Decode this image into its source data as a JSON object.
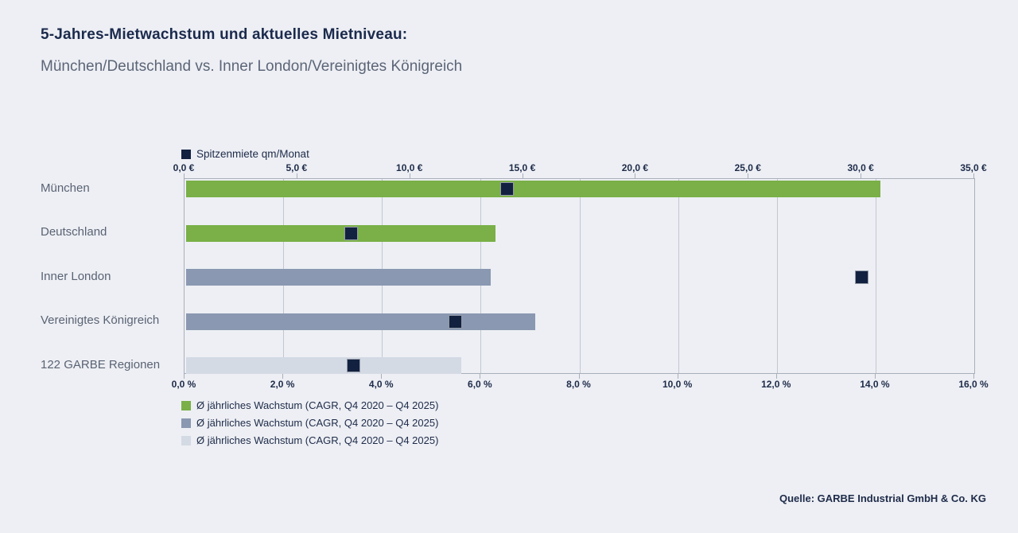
{
  "header": {
    "title": "5-Jahres-Mietwachstum und aktuelles Mietniveau:",
    "subtitle": "München/Deutschland vs. Inner London/Vereinigtes Königreich"
  },
  "top_legend": {
    "label": "Spitzenmiete qm/Monat",
    "marker_color": "#12213f"
  },
  "chart_data": {
    "type": "bar",
    "orientation": "horizontal",
    "categories": [
      "München",
      "Deutschland",
      "Inner London",
      "Vereinigtes Königreich",
      "122 GARBE Regionen"
    ],
    "series": [
      {
        "name": "Ø jährliches Wachstum (CAGR, Q4 2020 – Q4 2025)",
        "unit": "%",
        "axis": "bottom",
        "type": "bar",
        "values": [
          14.1,
          6.3,
          6.2,
          7.1,
          5.6
        ]
      },
      {
        "name": "Spitzenmiete qm/Monat",
        "unit": "€",
        "axis": "top",
        "type": "square-marker",
        "values": [
          14.3,
          7.4,
          30.0,
          12.0,
          7.5
        ]
      }
    ],
    "bar_colors": [
      "#7ab047",
      "#7ab047",
      "#8a98b1",
      "#8a98b1",
      "#d4dae4"
    ],
    "marker_color": "#12213f",
    "axis_top": {
      "min": 0,
      "max": 35,
      "step": 5,
      "ticks": [
        "0,0 €",
        "5,0 €",
        "10,0 €",
        "15,0 €",
        "20,0 €",
        "25,0 €",
        "30,0 €",
        "35,0 €"
      ]
    },
    "axis_bottom": {
      "min": 0,
      "max": 16,
      "step": 2,
      "ticks": [
        "0,0 %",
        "2,0 %",
        "4,0 %",
        "6,0 %",
        "8,0 %",
        "10,0 %",
        "12,0 %",
        "14,0 %",
        "16,0 %"
      ]
    },
    "grid": true,
    "legend_position": "bottom",
    "title": "5-Jahres-Mietwachstum und aktuelles Mietniveau: München/Deutschland vs. Inner London/Vereinigtes Königreich"
  },
  "bottom_legend": [
    {
      "label": "Ø jährliches Wachstum (CAGR, Q4 2020 – Q4 2025)",
      "color": "#7ab047"
    },
    {
      "label": "Ø jährliches Wachstum (CAGR, Q4 2020 – Q4 2025)",
      "color": "#8a98b1"
    },
    {
      "label": "Ø jährliches Wachstum (CAGR, Q4 2020 – Q4 2025)",
      "color": "#d4dae4"
    }
  ],
  "source": "Quelle: GARBE Industrial GmbH & Co. KG",
  "colors": {
    "background": "#edeff4",
    "title": "#1b2a4c",
    "subtitle": "#5c6577",
    "row_label": "#5a6373",
    "axis_label": "#1e2b49",
    "gridline": "#c2c7d1",
    "plot_border": "#a9afba",
    "green_bar": "#7ab047",
    "slate_bar": "#8a98b1",
    "light_bar": "#d4dae4",
    "marker": "#12213f"
  }
}
